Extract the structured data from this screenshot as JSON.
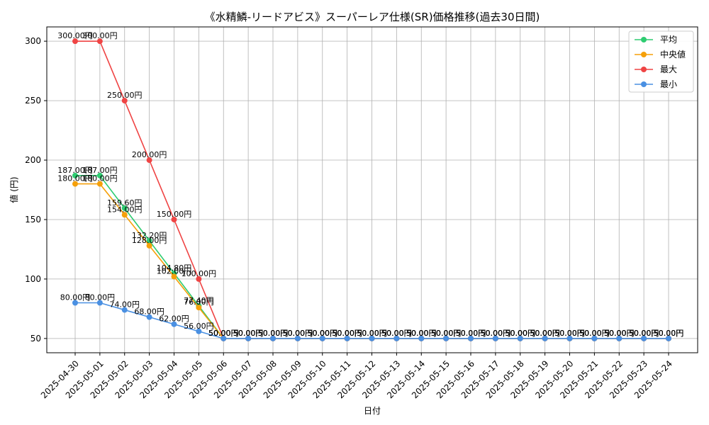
{
  "chart_data": {
    "type": "line",
    "title": "《水精鱗-リードアビス》スーパーレア仕様(SR)価格推移(過去30日間)",
    "xlabel": "日付",
    "ylabel": "値 (円)",
    "ylim": [
      38,
      312
    ],
    "yticks": [
      50,
      100,
      150,
      200,
      250,
      300
    ],
    "grid": true,
    "legend_position": "top-right",
    "label_suffix": "円",
    "categories": [
      "2025-04-30",
      "2025-05-01",
      "2025-05-02",
      "2025-05-03",
      "2025-05-04",
      "2025-05-05",
      "2025-05-06",
      "2025-05-07",
      "2025-05-08",
      "2025-05-09",
      "2025-05-10",
      "2025-05-11",
      "2025-05-12",
      "2025-05-13",
      "2025-05-14",
      "2025-05-15",
      "2025-05-16",
      "2025-05-17",
      "2025-05-18",
      "2025-05-19",
      "2025-05-20",
      "2025-05-21",
      "2025-05-22",
      "2025-05-23",
      "2025-05-24"
    ],
    "series": [
      {
        "name": "平均",
        "color": "#2ecc71",
        "values": [
          187.0,
          187.0,
          159.6,
          132.2,
          104.8,
          77.4,
          50,
          50,
          50,
          50,
          50,
          50,
          50,
          50,
          50,
          50,
          50,
          50,
          50,
          50,
          50,
          50,
          50,
          50,
          50
        ]
      },
      {
        "name": "中央値",
        "color": "#f5a00a",
        "values": [
          180.0,
          180.0,
          154.0,
          128.0,
          102.0,
          76.0,
          50,
          50,
          50,
          50,
          50,
          50,
          50,
          50,
          50,
          50,
          50,
          50,
          50,
          50,
          50,
          50,
          50,
          50,
          50
        ]
      },
      {
        "name": "最大",
        "color": "#ef4444",
        "values": [
          300.0,
          300.0,
          250.0,
          200.0,
          150.0,
          100.0,
          50,
          50,
          50,
          50,
          50,
          50,
          50,
          50,
          50,
          50,
          50,
          50,
          50,
          50,
          50,
          50,
          50,
          50,
          50
        ]
      },
      {
        "name": "最小",
        "color": "#4a90e2",
        "values": [
          80.0,
          80.0,
          74.0,
          68.0,
          62.0,
          56.0,
          50,
          50,
          50,
          50,
          50,
          50,
          50,
          50,
          50,
          50,
          50,
          50,
          50,
          50,
          50,
          50,
          50,
          50,
          50
        ]
      }
    ]
  }
}
